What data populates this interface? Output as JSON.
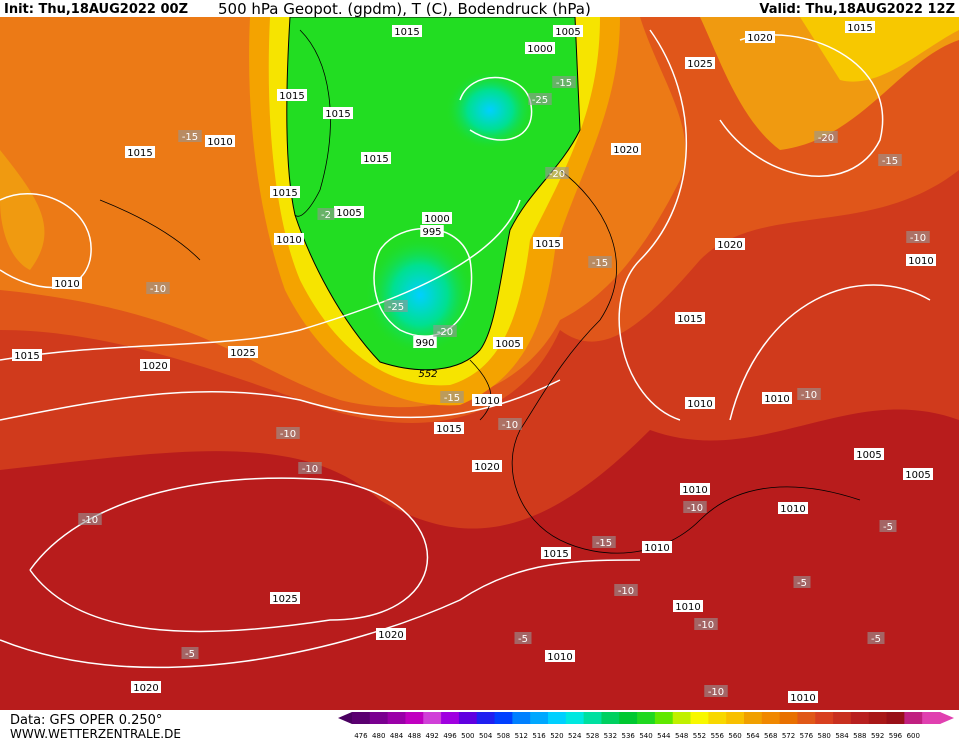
{
  "header": {
    "init": "Init: Thu,18AUG2022 00Z",
    "title": "500 hPa Geopot. (gpdm), T (C), Bodendruck (hPa)",
    "valid": "Valid: Thu,18AUG2022 12Z"
  },
  "footer": {
    "data": "Data: GFS OPER 0.250°",
    "site": "WWW.WETTERZENTRALE.DE"
  },
  "isobar_labels": [
    "1015",
    "1005",
    "1000",
    "1020",
    "1015",
    "1025",
    "1015",
    "1015",
    "1010",
    "1015",
    "1015",
    "1020",
    "1015",
    "1005",
    "1000",
    "995",
    "1010",
    "1015",
    "1020",
    "1010",
    "1010",
    "1015",
    "990",
    "1005",
    "1015",
    "1025",
    "1020",
    "1010",
    "1010",
    "1010",
    "1015",
    "1005",
    "1020",
    "1005",
    "1010",
    "1010",
    "1015",
    "1010",
    "1025",
    "1010",
    "1020",
    "1010",
    "1020",
    "1010"
  ],
  "temperature_labels": [
    "-15",
    "-15",
    "-25",
    "-20",
    "-15",
    "-20",
    "-2",
    "-15",
    "-10",
    "-10",
    "-25",
    "-20",
    "-15",
    "-10",
    "-10",
    "-10",
    "-10",
    "-10",
    "-10",
    "-5",
    "-15",
    "-10",
    "-5",
    "-10",
    "-5",
    "-5",
    "-5",
    "-10"
  ],
  "contour_labels": [
    "552"
  ],
  "colorbar": {
    "labels": [
      476,
      480,
      484,
      488,
      492,
      496,
      500,
      504,
      508,
      512,
      516,
      520,
      524,
      528,
      532,
      536,
      540,
      544,
      548,
      552,
      556,
      560,
      564,
      568,
      572,
      576,
      580,
      584,
      588,
      592,
      596,
      600
    ]
  }
}
